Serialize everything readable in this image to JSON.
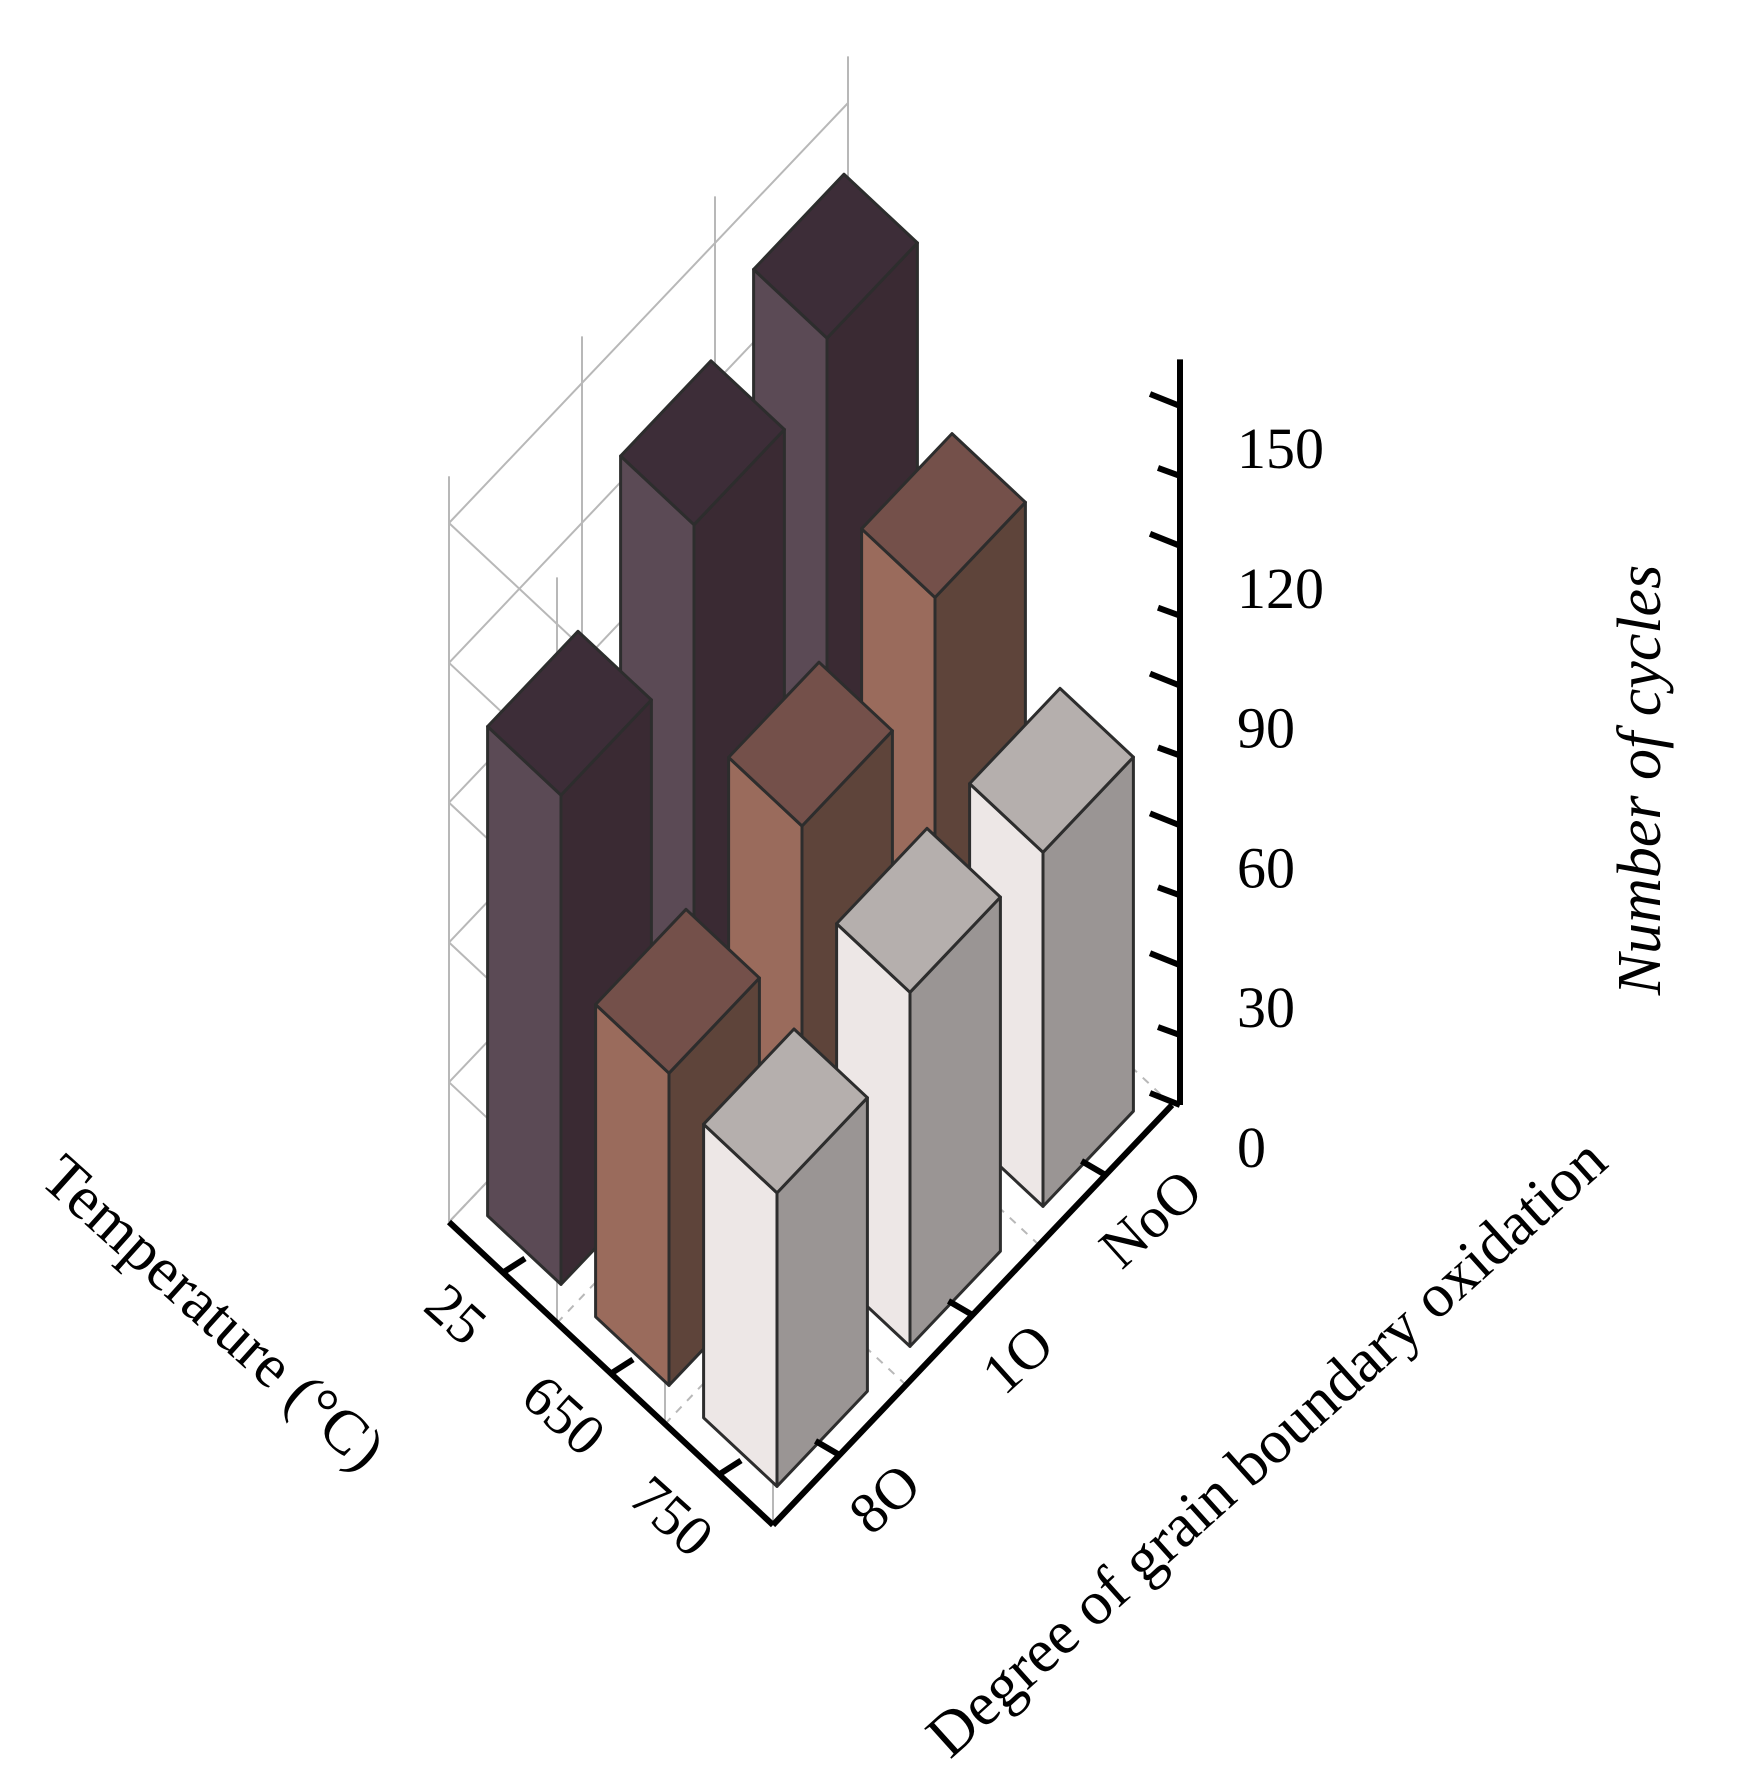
{
  "chart_data": {
    "type": "bar3d",
    "xlabel": "Temperature (°C)",
    "ylabel": "Degree of grain boundary oxidation",
    "zlabel": "Number of cycles",
    "temperatures": [
      "25",
      "650",
      "750"
    ],
    "oxidation_levels": [
      "8O",
      "1O",
      "NoO"
    ],
    "zlim": [
      0,
      160
    ],
    "zticks": [
      "0",
      "30",
      "60",
      "90",
      "120",
      "150"
    ],
    "grid": true,
    "series": [
      {
        "temperature": "25",
        "values": [
          105,
          133,
          143
        ]
      },
      {
        "temperature": "650",
        "values": [
          67,
          90,
          109
        ]
      },
      {
        "temperature": "750",
        "values": [
          63,
          76,
          76
        ]
      }
    ],
    "colors": {
      "25": {
        "top": "#3d2d38",
        "left": "#3a2a33",
        "right": "#5b4a55"
      },
      "650": {
        "top": "#74504a",
        "left": "#5e443a",
        "right": "#9a6b5c"
      },
      "750": {
        "top": "#b5afad",
        "left": "#9a9594",
        "right": "#ede7e6"
      }
    }
  }
}
